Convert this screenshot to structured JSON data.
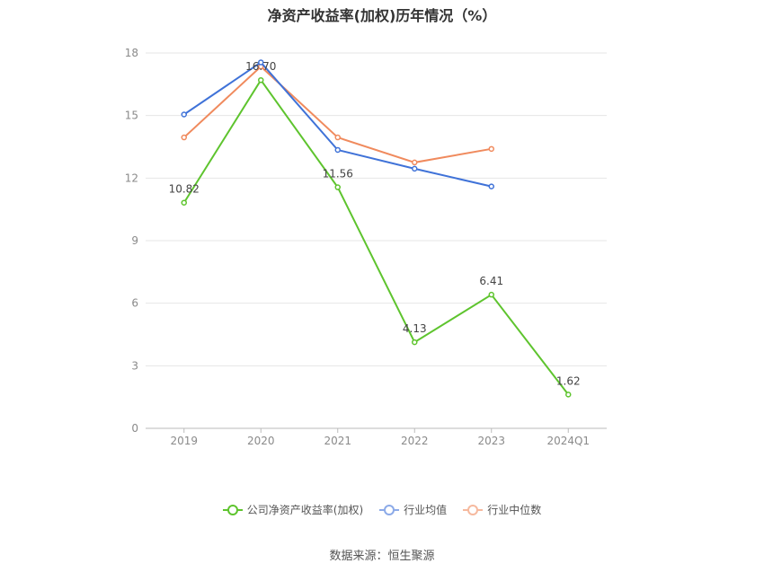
{
  "title": "净资产收益率(加权)历年情况（%）",
  "source": "数据来源：恒生聚源",
  "chart_data": {
    "type": "line",
    "categories": [
      "2019",
      "2020",
      "2021",
      "2022",
      "2023",
      "2024Q1"
    ],
    "ylim": [
      0,
      18
    ],
    "yticks": [
      0,
      3,
      6,
      9,
      12,
      15,
      18
    ],
    "grid": true,
    "legend_position": "bottom",
    "series": [
      {
        "name": "公司净资产收益率(加权)",
        "color": "#5ec42e",
        "values": [
          10.82,
          16.7,
          11.56,
          4.13,
          6.41,
          1.62
        ],
        "labels": [
          "10.82",
          "16.70",
          "11.56",
          "4.13",
          "6.41",
          "1.62"
        ]
      },
      {
        "name": "行业均值",
        "color": "#3f72d8",
        "values": [
          15.05,
          17.55,
          13.35,
          12.45,
          11.6,
          null
        ],
        "labels": null
      },
      {
        "name": "行业中位数",
        "color": "#f08a5d",
        "values": [
          13.95,
          17.35,
          13.95,
          12.75,
          13.4,
          null
        ],
        "labels": null
      }
    ]
  }
}
